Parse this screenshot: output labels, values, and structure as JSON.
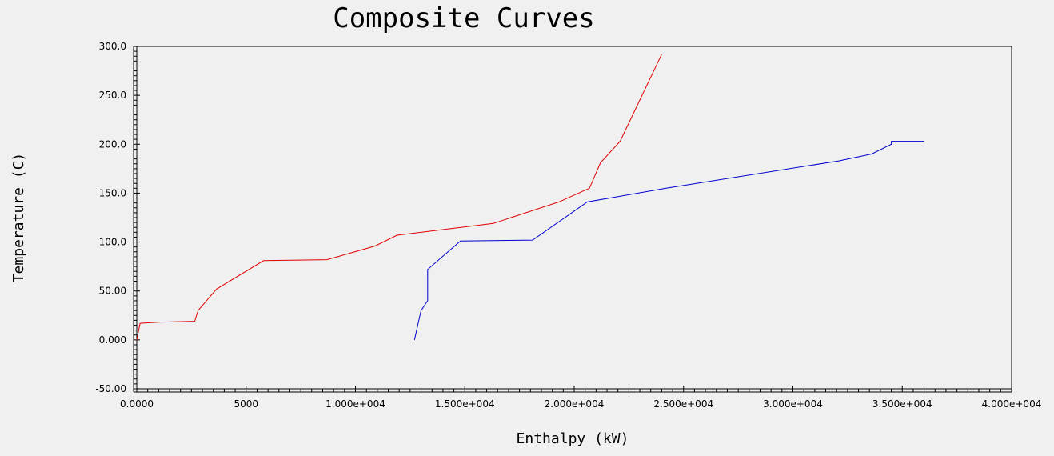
{
  "chart_data": {
    "type": "line",
    "title": "Composite Curves",
    "xlabel": "Enthalpy (kW)",
    "ylabel": "Temperature (C)",
    "xlim": [
      0,
      40000
    ],
    "ylim": [
      -50,
      300
    ],
    "x_ticks": [
      0,
      5000,
      10000,
      15000,
      20000,
      25000,
      30000,
      35000,
      40000
    ],
    "x_tick_labels": [
      "0.0000",
      "5000",
      "1.000e+004",
      "1.500e+004",
      "2.000e+004",
      "2.500e+004",
      "3.000e+004",
      "3.500e+004",
      "4.000e+004"
    ],
    "y_ticks": [
      -50,
      0,
      50,
      100,
      150,
      200,
      250,
      300
    ],
    "y_tick_labels": [
      "-50.00",
      "0.000",
      "50.00",
      "100.0",
      "150.0",
      "200.0",
      "250.0",
      "300.0"
    ],
    "grid": false,
    "series": [
      {
        "color": "#e00000",
        "x": [
          0,
          150,
          950,
          2650,
          2800,
          3650,
          5800,
          8700,
          10900,
          11900,
          16300,
          19300,
          20700,
          21200,
          22100,
          24000
        ],
        "y": [
          0,
          17,
          18,
          19,
          30,
          52,
          81,
          82,
          96,
          107,
          119,
          141,
          155,
          181,
          203,
          292
        ]
      },
      {
        "color": "#0000d0",
        "x": [
          12700,
          13000,
          13300,
          13300,
          14800,
          18100,
          20600,
          24200,
          32100,
          33600,
          34500,
          34500,
          36000
        ],
        "y": [
          0,
          30,
          40,
          72,
          101,
          102,
          141,
          155,
          183,
          190,
          200,
          203,
          203
        ]
      }
    ]
  }
}
